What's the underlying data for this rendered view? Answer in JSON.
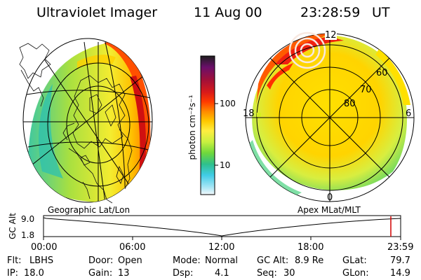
{
  "header": {
    "instrument": "Ultraviolet Imager",
    "date": "11 Aug 00",
    "time": "23:28:59",
    "time_zone": "UT"
  },
  "left_panel": {
    "label": "Geographic Lat/Lon"
  },
  "right_panel": {
    "label": "Apex MLat/MLT",
    "mlt_labels": {
      "top": "12",
      "left": "18",
      "right": "6",
      "bottom": "0"
    },
    "lat_labels": [
      "60",
      "70",
      "80"
    ]
  },
  "colorbar": {
    "unit_label": "photon cm⁻²s⁻¹",
    "ticks": [
      "100",
      "10"
    ],
    "colors": [
      "#202020",
      "#6a0f6a",
      "#a0103a",
      "#d81a1a",
      "#ff3b00",
      "#ff8a00",
      "#ffc800",
      "#ffee40",
      "#c8f040",
      "#6fd83c",
      "#2fc08c",
      "#40cce6",
      "#a0e4f4",
      "#e8f4fa"
    ]
  },
  "altitude_plot": {
    "ylabel": "GC Alt",
    "yticks": [
      "9.0",
      "1.8"
    ],
    "xticks": [
      "00:00",
      "06:00",
      "12:00",
      "18:00",
      "23:59"
    ]
  },
  "status": {
    "filter_label": "Flt:",
    "filter_value": "LBHS",
    "door_label": "Door:",
    "door_value": "Open",
    "mode_label": "Mode:",
    "mode_value": "Normal",
    "gcalt_label": "GC Alt:",
    "gcalt_value": "8.9 Re",
    "glat_label": "GLat:",
    "glat_value": "79.7",
    "ip_label": "IP:",
    "ip_value": "18.0",
    "gain_label": "Gain:",
    "gain_value": "13",
    "dsp_label": "Dsp:",
    "dsp_value": "4.1",
    "seq_label": "Seq:",
    "seq_value": "30",
    "glon_label": "GLon:",
    "glon_value": "14.9"
  }
}
